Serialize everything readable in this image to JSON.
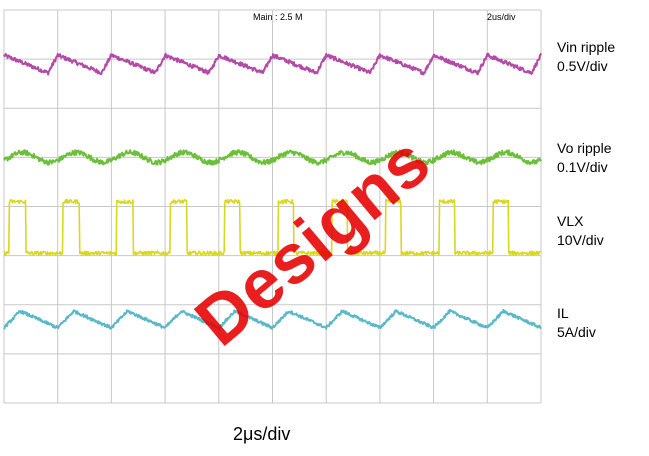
{
  "chart_data": {
    "type": "line",
    "header": {
      "main": "Main : 2.5 M",
      "timebase": "2us/div"
    },
    "x_caption": "2μs/div",
    "grid": true,
    "grid_divisions": {
      "x": 10,
      "y": 8
    },
    "x_range_div": [
      0,
      10
    ],
    "y_range_div": [
      0,
      8
    ],
    "period_div": 1.0,
    "series": [
      {
        "name": "Vin ripple",
        "scale": "0.5V/div",
        "color": "#b24aa6",
        "shape": "sawtooth-falling",
        "level_div": 6.9,
        "amplitude_div": 0.18,
        "noise_div": 0.04
      },
      {
        "name": "Vo ripple",
        "scale": "0.1V/div",
        "color": "#6cbf3a",
        "shape": "sine",
        "level_div": 5.0,
        "amplitude_div": 0.1,
        "noise_div": 0.05
      },
      {
        "name": "VLX",
        "scale": "10V/div",
        "color": "#d8d820",
        "shape": "pulse",
        "low_div": 3.05,
        "high_div": 4.1,
        "duty": 0.3,
        "noise_div": 0.04
      },
      {
        "name": "IL",
        "scale": "5A/div",
        "color": "#5ab8c8",
        "shape": "triangle",
        "level_div": 1.7,
        "amplitude_div": 0.17,
        "rise_fraction": 0.3,
        "noise_div": 0.03
      }
    ]
  },
  "watermark": "Designs"
}
